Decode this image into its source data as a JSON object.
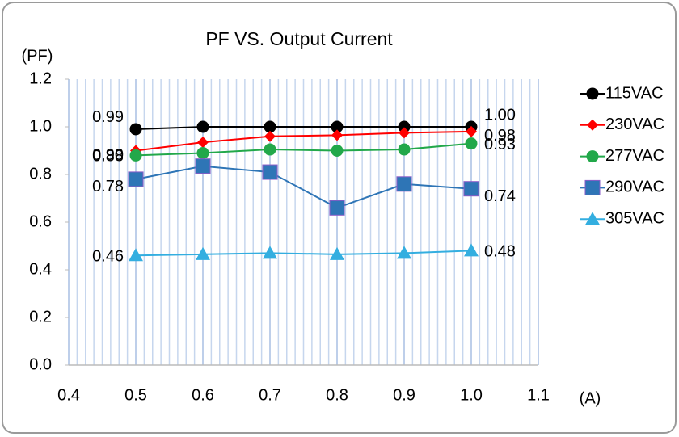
{
  "chart_data": {
    "type": "line",
    "title": "PF  VS. Output Current",
    "y_label": "(PF)",
    "x_label": "(A)",
    "x": [
      0.5,
      0.6,
      0.7,
      0.8,
      0.9,
      1
    ],
    "xlim": [
      0.4,
      1.1
    ],
    "xticks": [
      0.4,
      0.5,
      0.6,
      0.7,
      0.8,
      0.9,
      {
        "value": 1,
        "label": "1.0"
      },
      1.1
    ],
    "ylim": [
      0,
      1.2
    ],
    "yticks": [
      {
        "value": 0,
        "label": "0.0"
      },
      0.2,
      0.4,
      0.6,
      0.8,
      {
        "value": 1,
        "label": "1.0"
      },
      1.2
    ],
    "grid": true,
    "legend": "right",
    "series": [
      {
        "name": "115VAC",
        "color": "#000000",
        "marker": "circle",
        "values": [
          0.99,
          1.0,
          1.0,
          1.0,
          1.0,
          1.0
        ],
        "value_labels": [
          "0.99",
          null,
          null,
          null,
          null,
          "1.00"
        ]
      },
      {
        "name": "230VAC",
        "color": "#ff0000",
        "marker": "diamond",
        "values": [
          0.9,
          0.935,
          0.96,
          0.965,
          0.975,
          0.98
        ],
        "value_labels": [
          "0.90",
          null,
          null,
          null,
          null,
          "0.98"
        ]
      },
      {
        "name": "277VAC",
        "color": "#22a84a",
        "marker": "circle",
        "values": [
          0.88,
          0.89,
          0.905,
          0.9,
          0.905,
          0.93
        ],
        "value_labels": [
          "0.88",
          null,
          null,
          null,
          null,
          "0.93"
        ]
      },
      {
        "name": "290VAC",
        "color": "#2e75b6",
        "marker": "square",
        "values": [
          0.78,
          0.835,
          0.81,
          0.66,
          0.76,
          0.74
        ],
        "value_labels": [
          "0.78",
          null,
          null,
          null,
          null,
          "0.74"
        ]
      },
      {
        "name": "305VAC",
        "color": "#33aee0",
        "marker": "triangle",
        "values": [
          0.46,
          0.465,
          0.47,
          0.465,
          0.47,
          0.48
        ],
        "value_labels": [
          "0.46",
          null,
          null,
          null,
          null,
          "0.48"
        ]
      }
    ]
  }
}
